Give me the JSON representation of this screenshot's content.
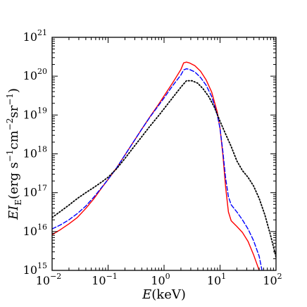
{
  "chart_data": {
    "type": "line",
    "title": "",
    "xlabel": "E (keV)",
    "ylabel": "E I_E (erg s^-1 cm^-2 sr^-1)",
    "xscale": "log",
    "yscale": "log",
    "xlim": [
      0.01,
      100
    ],
    "ylim": [
      1000000000000000.0,
      1e+21
    ],
    "grid": false,
    "legend": "none",
    "x_ticks": [
      {
        "base": "10",
        "exp": "−2",
        "value": 0.01
      },
      {
        "base": "10",
        "exp": "−1",
        "value": 0.1
      },
      {
        "base": "10",
        "exp": "0",
        "value": 1
      },
      {
        "base": "10",
        "exp": "1",
        "value": 10
      },
      {
        "base": "10",
        "exp": "2",
        "value": 100
      }
    ],
    "y_ticks": [
      {
        "base": "10",
        "exp": "15",
        "value": 1000000000000000.0
      },
      {
        "base": "10",
        "exp": "16",
        "value": 1e+16
      },
      {
        "base": "10",
        "exp": "17",
        "value": 1e+17
      },
      {
        "base": "10",
        "exp": "18",
        "value": 1e+18
      },
      {
        "base": "10",
        "exp": "19",
        "value": 1e+19
      },
      {
        "base": "10",
        "exp": "20",
        "value": 1e+20
      },
      {
        "base": "10",
        "exp": "21",
        "value": 1e+21
      }
    ],
    "series": [
      {
        "color": "#ff0000",
        "style": "solid",
        "points": [
          [
            0.01,
            8300000000000000.0
          ],
          [
            0.0141,
            1.12e+16
          ],
          [
            0.02,
            1.58e+16
          ],
          [
            0.0282,
            2.3e+16
          ],
          [
            0.0398,
            3.9e+16
          ],
          [
            0.0562,
            7.1e+16
          ],
          [
            0.0794,
            1.41e+17
          ],
          [
            0.1,
            2.2e+17
          ],
          [
            0.141,
            4.3e+17
          ],
          [
            0.2,
            9.3e+17
          ],
          [
            0.282,
            2e+18
          ],
          [
            0.398,
            4.3e+18
          ],
          [
            0.562,
            9.1e+18
          ],
          [
            0.794,
            1.86e+19
          ],
          [
            1.0,
            3.1e+19
          ],
          [
            1.41,
            6.6e+19
          ],
          [
            2.0,
            1.48e+20
          ],
          [
            2.24,
            2.2e+20
          ],
          [
            2.51,
            2.3e+20
          ],
          [
            2.82,
            2.2e+20
          ],
          [
            3.55,
            1.86e+20
          ],
          [
            4.47,
            1.35e+20
          ],
          [
            5.62,
            8.1e+19
          ],
          [
            7.08,
            3.9e+19
          ],
          [
            8.91,
            1.2e+19
          ],
          [
            10.0,
            4.5e+18
          ],
          [
            11.2,
            1e+18
          ],
          [
            12.6,
            1.35e+17
          ],
          [
            14.1,
            3.2e+16
          ],
          [
            15.8,
            1.9e+16
          ],
          [
            20.0,
            1.35e+16
          ],
          [
            25.1,
            9500000000000000.0
          ],
          [
            31.6,
            5600000000000000.0
          ],
          [
            39.8,
            2500000000000000.0
          ],
          [
            50.1,
            1000000000000000.0
          ]
        ]
      },
      {
        "color": "#0000ff",
        "style": "dashed",
        "points": [
          [
            0.01,
            1.17e+16
          ],
          [
            0.0141,
            1.48e+16
          ],
          [
            0.02,
            2e+16
          ],
          [
            0.0282,
            2.9e+16
          ],
          [
            0.0398,
            4.5e+16
          ],
          [
            0.0562,
            7.8e+16
          ],
          [
            0.0794,
            1.45e+17
          ],
          [
            0.1,
            2.2e+17
          ],
          [
            0.141,
            4.3e+17
          ],
          [
            0.2,
            9.3e+17
          ],
          [
            0.282,
            2e+18
          ],
          [
            0.398,
            4.3e+18
          ],
          [
            0.562,
            8.9e+18
          ],
          [
            0.794,
            1.74e+19
          ],
          [
            1.0,
            2.75e+19
          ],
          [
            1.41,
            5.6e+19
          ],
          [
            2.0,
            1.07e+20
          ],
          [
            2.24,
            1.45e+20
          ],
          [
            2.51,
            1.55e+20
          ],
          [
            2.82,
            1.5e+20
          ],
          [
            3.55,
            1.29e+20
          ],
          [
            4.47,
            9.3e+19
          ],
          [
            5.62,
            5.9e+19
          ],
          [
            7.08,
            3e+19
          ],
          [
            8.91,
            1.02e+19
          ],
          [
            10.0,
            4.5e+18
          ],
          [
            11.2,
            1.2e+18
          ],
          [
            12.6,
            2.3e+17
          ],
          [
            14.1,
            7.9e+16
          ],
          [
            15.8,
            4.9e+16
          ],
          [
            20.0,
            3.2e+16
          ],
          [
            25.1,
            2e+16
          ],
          [
            31.6,
            1.17e+16
          ],
          [
            39.8,
            5800000000000000.0
          ],
          [
            50.1,
            2300000000000000.0
          ],
          [
            56.2,
            1000000000000000.0
          ]
        ]
      },
      {
        "color": "#000000",
        "style": "dotted",
        "points": [
          [
            0.01,
            2.3e+16
          ],
          [
            0.0141,
            3.3e+16
          ],
          [
            0.02,
            4.8e+16
          ],
          [
            0.0282,
            7.1e+16
          ],
          [
            0.0398,
            1e+17
          ],
          [
            0.0562,
            1.38e+17
          ],
          [
            0.0794,
            1.95e+17
          ],
          [
            0.1,
            2.5e+17
          ],
          [
            0.141,
            4.1e+17
          ],
          [
            0.2,
            7.6e+17
          ],
          [
            0.282,
            1.45e+18
          ],
          [
            0.398,
            2.75e+18
          ],
          [
            0.562,
            5.2e+18
          ],
          [
            0.794,
            9.5e+18
          ],
          [
            1.0,
            1.45e+19
          ],
          [
            1.41,
            2.75e+19
          ],
          [
            2.0,
            5.2e+19
          ],
          [
            2.51,
            7.6e+19
          ],
          [
            3.16,
            7.6e+19
          ],
          [
            3.98,
            6.6e+19
          ],
          [
            5.01,
            4.7e+19
          ],
          [
            6.31,
            2.95e+19
          ],
          [
            7.94,
            1.58e+19
          ],
          [
            10.0,
            6.9e+18
          ],
          [
            12.6,
            3.2e+18
          ],
          [
            15.8,
            1.55e+18
          ],
          [
            20.0,
            6.6e+17
          ],
          [
            25.1,
            3.7e+17
          ],
          [
            31.6,
            2.5e+17
          ],
          [
            39.8,
            1.48e+17
          ],
          [
            50.1,
            7.1e+16
          ],
          [
            63.1,
            2.7e+16
          ],
          [
            79.4,
            8300000000000000.0
          ],
          [
            100,
            2200000000000000.0
          ]
        ]
      }
    ]
  }
}
